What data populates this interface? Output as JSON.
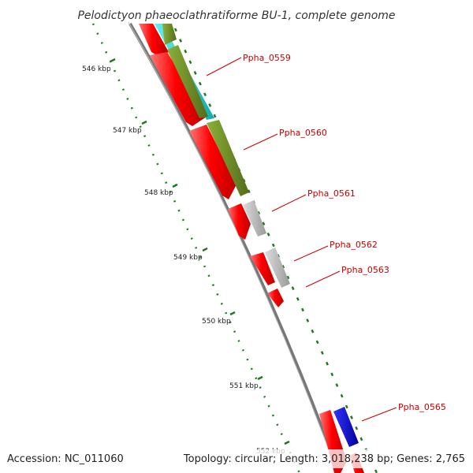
{
  "title": "Pelodictyon phaeoclathratiforme BU-1, complete genome",
  "footer": {
    "accession": "Accession: NC_011060",
    "info": "Topology: circular; Length: 3,018,238 bp; Genes: 2,765"
  },
  "scale_labels": [
    "546 kbp",
    "547 kbp",
    "548 kbp",
    "549 kbp",
    "550 kbp",
    "551 kbp",
    "552 kbp"
  ],
  "gene_labels": [
    "Ppha_0559",
    "Ppha_0560",
    "Ppha_0561",
    "Ppha_0562",
    "Ppha_0563",
    "Ppha_0565"
  ],
  "colors": {
    "cds": "#ff0000",
    "cyan_track": "#22cccc",
    "olive_track": "#6b8e23",
    "gray_track": "#bbbbbb",
    "blue_track": "#0000dd",
    "backbone": "#888888",
    "gc_ticks": "#1f7a1f",
    "label": "#cc0000"
  }
}
